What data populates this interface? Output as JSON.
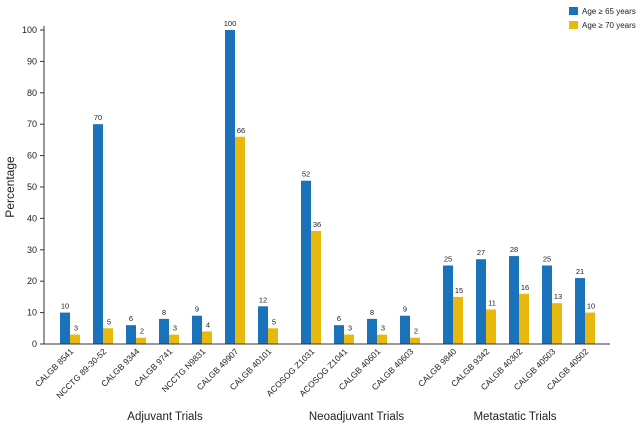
{
  "chart_data": {
    "type": "bar",
    "ylabel": "Percentage",
    "ylim": [
      0,
      100
    ],
    "yticks": [
      0,
      10,
      20,
      30,
      40,
      50,
      60,
      70,
      80,
      90,
      100
    ],
    "grid": false,
    "legend_position": "top-right",
    "categories": [
      "CALGB 8541",
      "NCCTG 89-30-52",
      "CALGB 9344",
      "CALGB 9741",
      "NCCTG N9831",
      "CALGB 49907",
      "CALGB 40101",
      "ACOSOG Z1031",
      "ACOSOG Z1041",
      "CALGB 40601",
      "CALGB 40603",
      "CALGB 9840",
      "CALGB 9342",
      "CALGB 40302",
      "CALGB 40503",
      "CALGB 40502"
    ],
    "groups": [
      {
        "label": "Adjuvant Trials",
        "count": 7
      },
      {
        "label": "Neoadjuvant Trials",
        "count": 4
      },
      {
        "label": "Metastatic Trials",
        "count": 5
      }
    ],
    "series": [
      {
        "name": "Age ≥ 65 years",
        "color": "#1a72bb",
        "values": [
          10,
          70,
          6,
          8,
          9,
          100,
          12,
          52,
          6,
          8,
          9,
          25,
          27,
          28,
          25,
          21
        ]
      },
      {
        "name": "Age ≥ 70 years",
        "color": "#e8b90c",
        "values": [
          3,
          5,
          2,
          3,
          4,
          66,
          5,
          36,
          3,
          3,
          2,
          15,
          11,
          16,
          13,
          10
        ]
      }
    ]
  }
}
